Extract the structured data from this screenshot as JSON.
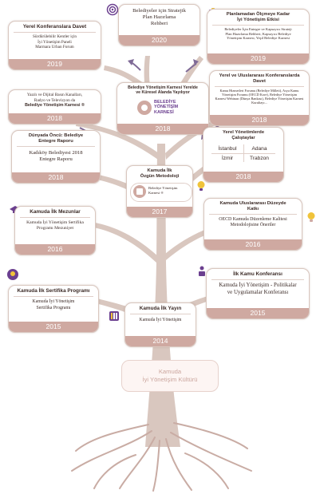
{
  "root": {
    "line1": "Kamuda",
    "line2": "İyi Yönetişim Kültürü"
  },
  "cards": {
    "c2014": {
      "title": "Kamuda İlk Yayın",
      "body": "Kamuda İyi Yönetişim",
      "year": "2014"
    },
    "c2015": {
      "title": "Kamuda İlk Sertifika Programı",
      "body1": "Kamuda İyi Yönetişim",
      "body2": "Sertifika Programı",
      "year": "2015"
    },
    "c2015b": {
      "title": "İlk Kamu Konferansı",
      "body1": "Kamuda İyi Yönetişim - Politikalar",
      "body2": "ve Uygulamalar Konferansı",
      "year": "2015"
    },
    "c2016": {
      "title": "Kamuda İlk Mezunlar",
      "body1": "Kamuda İyi Yönetişim Sertifika",
      "body2": "Programı Mezuniyet",
      "year": "2016"
    },
    "c2016b": {
      "title1": "Kamuda Uluslararası Düzeyde",
      "title2": "Katkı",
      "body1": "OECD Kamuda Düzenleme Kalitesi",
      "body2": "Metodolojisine Öneriler",
      "year": "2016"
    },
    "c2017": {
      "title1": "Kamuda İlk",
      "title2": "Özgün Metodoloji",
      "badge1": "Belediye Yönetişim",
      "badge2": "Karnesi ®",
      "year": "2017"
    },
    "c2018a": {
      "title1": "Dünyada Öncü: Belediye",
      "title2": "Entegre Raporu",
      "body1": "Kadıköy Belediyesi 2018",
      "body2": "Entegre Raporu",
      "year": "2018"
    },
    "c2018b": {
      "title1": "Yerel Yönetimlerde",
      "title2": "Çalıştaylar",
      "cities": [
        "İstanbul",
        "Adana",
        "İzmir",
        "Trabzon"
      ],
      "year": "2018"
    },
    "c2018c": {
      "body1": "Yazılı ve Dijital Basın Kanalları,",
      "body2": "Radyo ve Televizyon da",
      "body3": "Belediye Yönetişim Karnesi ®",
      "year": "2018"
    },
    "c2018d": {
      "title1": "Belediye Yönetişim Karnesi Yerelde",
      "title2": "ve Küresel Alanda Yayılıyor",
      "logo1": "BELEDİYE",
      "logo2": "YÖNETİŞİM",
      "logo3": "KARNESİ",
      "year": "2018"
    },
    "c2018e": {
      "title1": "Yerel ve Uluslararası Konferanslarda",
      "title2": "Davet",
      "body1": "Kamu Hizmetleri Forumu (Belediye Milleti), Asya Kamu",
      "body2": "Yönetişim Forumu (OECD Kore), Belediye Yönetişim",
      "body3": "Karnesi Webinarı (Dünya Bankası), Belediye Yönetişim Karnesi",
      "body4": "Kurultayı...",
      "year": "2018"
    },
    "c2019a": {
      "title": "Yerel Konferanslara Davet",
      "body1": "Sürdürülebilir Kentler için",
      "body2": "İyi Yönetişim Paneli",
      "body3": "Marmara Urban Forum",
      "year": "2019"
    },
    "c2019b": {
      "title1": "Planlamadan Ölçmeye Kadar",
      "title2": "İyi Yönetişim Etkisi",
      "body1": "Belediyeler İçin Entegre ve Kapsayıcı Strateji",
      "body2": "Plan Hazırlama Rehberi, Kapsayıcı Belediye",
      "body3": "Yönetişim Karnesi, Yeşil Belediye Karnesi",
      "year": "2019"
    },
    "c2020": {
      "body1": "Belediyeler için Stratejik",
      "body2": "Plan Hazırlama",
      "body3": "Rehberi",
      "year": "2020"
    }
  },
  "colors": {
    "tree": "#d9c7bf",
    "accent": "#cfa9a1",
    "arrow": "#7f6a97",
    "icon_purple": "#6b3f8f",
    "icon_yellow": "#f0c33a"
  }
}
